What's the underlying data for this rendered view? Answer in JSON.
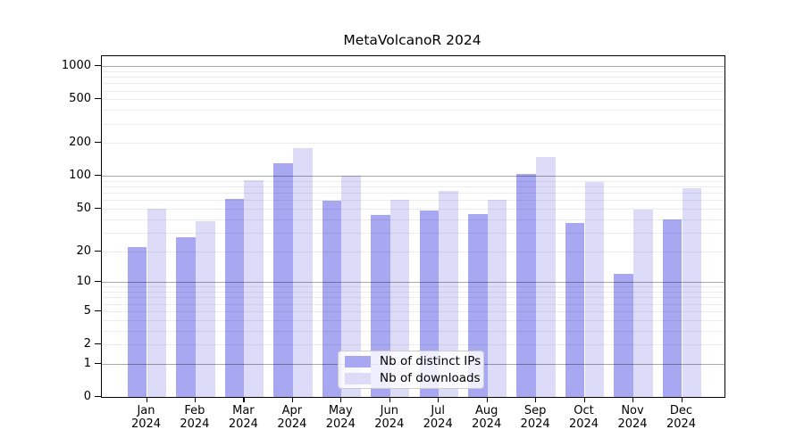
{
  "chart_data": {
    "type": "bar",
    "title": "MetaVolcanoR 2024",
    "categories": [
      "Jan",
      "Feb",
      "Mar",
      "Apr",
      "May",
      "Jun",
      "Jul",
      "Aug",
      "Sep",
      "Oct",
      "Nov",
      "Dec"
    ],
    "x_tick_year": "2024",
    "series": [
      {
        "name": "Nb of distinct IPs",
        "color": "#a8a8f2",
        "values": [
          22,
          27,
          62,
          130,
          59,
          44,
          48,
          45,
          104,
          37,
          12,
          40
        ]
      },
      {
        "name": "Nb of downloads",
        "color": "#dcdcf8",
        "values": [
          50,
          38,
          92,
          180,
          100,
          61,
          73,
          60,
          150,
          88,
          49,
          77
        ]
      }
    ],
    "y_ticks": [
      0,
      1,
      2,
      5,
      10,
      20,
      50,
      100,
      200,
      500,
      1000
    ],
    "y_scale": "log10(1+x)",
    "ylim": [
      0,
      1230
    ],
    "xlabel": "",
    "ylabel": "",
    "grid": "horizontal, log minor + major on",
    "legend_position": "bottom-center"
  }
}
